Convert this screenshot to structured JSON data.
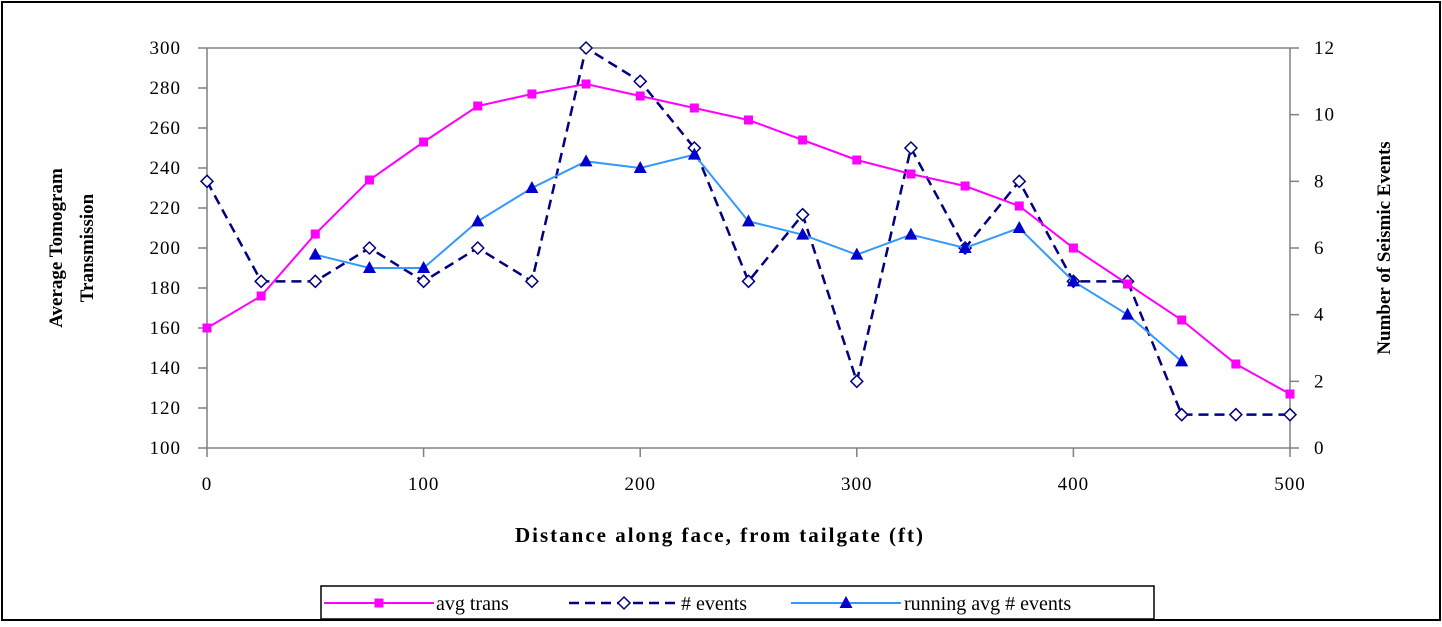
{
  "chart_data": {
    "type": "line",
    "xlabel": "Distance along face, from tailgate (ft)",
    "ylabel": "Average Tomogram Transmission",
    "y2label": "Number of Seismic Events",
    "xlim": [
      0,
      500
    ],
    "ylim": [
      100,
      300
    ],
    "y2lim": [
      0,
      12
    ],
    "xticks": [
      0,
      100,
      200,
      300,
      400,
      500
    ],
    "yticks": [
      100,
      120,
      140,
      160,
      180,
      200,
      220,
      240,
      260,
      280,
      300
    ],
    "y2ticks": [
      0,
      2,
      4,
      6,
      8,
      10,
      12
    ],
    "grid": false,
    "legend_position": "bottom",
    "series": [
      {
        "name": "avg trans",
        "axis": "left",
        "color": "#FF00FF",
        "marker": "square",
        "line": "solid",
        "x": [
          0,
          25,
          50,
          75,
          100,
          125,
          150,
          175,
          200,
          225,
          250,
          275,
          300,
          325,
          350,
          375,
          400,
          425,
          450,
          475,
          500
        ],
        "y": [
          160,
          176,
          207,
          234,
          253,
          271,
          277,
          282,
          276,
          270,
          264,
          254,
          244,
          237,
          231,
          221,
          200,
          182,
          164,
          142,
          127
        ]
      },
      {
        "name": "# events",
        "axis": "right",
        "color": "#000080",
        "marker": "diamond-open",
        "line": "dashed",
        "x": [
          0,
          25,
          50,
          75,
          100,
          125,
          150,
          175,
          200,
          225,
          250,
          275,
          300,
          325,
          350,
          375,
          400,
          425,
          450,
          475,
          500
        ],
        "y": [
          8,
          5,
          5,
          6,
          5,
          6,
          5,
          12,
          11,
          9,
          5,
          7,
          2,
          9,
          6,
          8,
          5,
          5,
          1,
          1,
          1
        ]
      },
      {
        "name": "running avg # events",
        "axis": "right",
        "color": "#3399FF",
        "marker": "triangle",
        "line": "solid",
        "x": [
          50,
          75,
          100,
          125,
          150,
          175,
          200,
          225,
          250,
          275,
          300,
          325,
          350,
          375,
          400,
          425,
          450
        ],
        "y": [
          5.8,
          5.4,
          5.4,
          6.8,
          7.8,
          8.6,
          8.4,
          8.8,
          6.8,
          6.4,
          5.8,
          6.4,
          6.0,
          6.6,
          5.0,
          4.0,
          2.6
        ]
      }
    ]
  }
}
